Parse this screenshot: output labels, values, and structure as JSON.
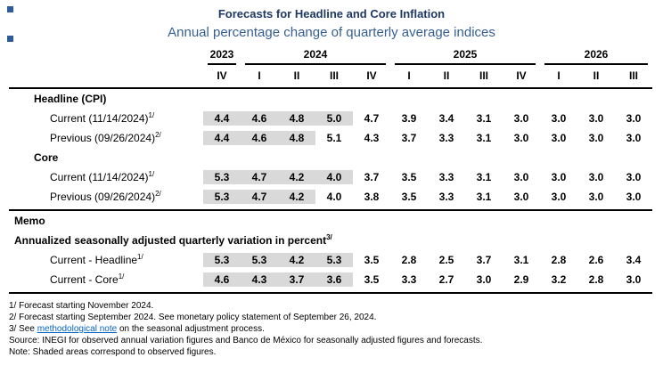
{
  "title": "Forecasts for Headline and Core Inflation",
  "subtitle": "Annual percentage change of quarterly average indices",
  "colors": {
    "title": "#1F3864",
    "subtitle": "#365F91",
    "shaded": "#D9D9D9",
    "link": "#0563C1"
  },
  "table": {
    "year_groups": [
      {
        "label": "2023",
        "span": 1
      },
      {
        "label": "2024",
        "span": 4
      },
      {
        "label": "2025",
        "span": 4
      },
      {
        "label": "2026",
        "span": 3
      }
    ],
    "quarters": [
      "IV",
      "I",
      "II",
      "III",
      "IV",
      "I",
      "II",
      "III",
      "IV",
      "I",
      "II",
      "III"
    ],
    "rows": [
      {
        "type": "section",
        "label": "Headline (CPI)"
      },
      {
        "type": "data",
        "label": "Current (11/14/2024)",
        "sup": "1/",
        "values": [
          "4.4",
          "4.6",
          "4.8",
          "5.0",
          "4.7",
          "3.9",
          "3.4",
          "3.1",
          "3.0",
          "3.0",
          "3.0",
          "3.0"
        ],
        "shaded": 4
      },
      {
        "type": "data",
        "label": "Previous (09/26/2024)",
        "sup": "2/",
        "values": [
          "4.4",
          "4.6",
          "4.8",
          "5.1",
          "4.3",
          "3.7",
          "3.3",
          "3.1",
          "3.0",
          "3.0",
          "3.0",
          "3.0"
        ],
        "shaded": 3
      },
      {
        "type": "section",
        "label": "Core"
      },
      {
        "type": "data",
        "label": "Current (11/14/2024)",
        "sup": "1/",
        "values": [
          "5.3",
          "4.7",
          "4.2",
          "4.0",
          "3.7",
          "3.5",
          "3.3",
          "3.1",
          "3.0",
          "3.0",
          "3.0",
          "3.0"
        ],
        "shaded": 4
      },
      {
        "type": "data",
        "label": "Previous (09/26/2024)",
        "sup": "2/",
        "values": [
          "5.3",
          "4.7",
          "4.2",
          "4.0",
          "3.8",
          "3.5",
          "3.3",
          "3.1",
          "3.0",
          "3.0",
          "3.0",
          "3.0"
        ],
        "shaded": 3
      },
      {
        "type": "divider"
      },
      {
        "type": "section",
        "label": "Memo",
        "outdent": true
      },
      {
        "type": "section",
        "label": "Annualized seasonally adjusted quarterly variation in percent",
        "sup": "3/",
        "outdent": true
      },
      {
        "type": "data",
        "label": "Current - Headline",
        "sup": "1/",
        "values": [
          "5.3",
          "5.3",
          "4.2",
          "5.3",
          "3.5",
          "2.8",
          "2.5",
          "3.7",
          "3.1",
          "2.8",
          "2.6",
          "3.4"
        ],
        "shaded": 4
      },
      {
        "type": "data",
        "label": "Current - Core",
        "sup": "1/",
        "values": [
          "4.6",
          "4.3",
          "3.7",
          "3.6",
          "3.5",
          "3.3",
          "2.7",
          "3.0",
          "2.9",
          "3.2",
          "2.8",
          "3.0"
        ],
        "shaded": 4
      },
      {
        "type": "divider"
      }
    ]
  },
  "footnotes": [
    {
      "text_before": "1/ Forecast starting November 2024."
    },
    {
      "text_before": "2/ Forecast starting September 2024. See monetary policy statement of September 26, 2024."
    },
    {
      "text_before": "3/ See ",
      "link": "methodological note",
      "text_after": " on the seasonal adjustment process."
    },
    {
      "text_before": "Source: INEGI for observed annual variation figures and Banco de México for seasonally adjusted figures and forecasts."
    },
    {
      "text_before": "Note: Shaded areas correspond to observed figures."
    }
  ]
}
